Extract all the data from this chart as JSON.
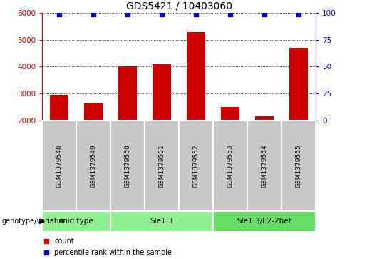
{
  "title": "GDS5421 / 10403060",
  "samples": [
    "GSM1379548",
    "GSM1379549",
    "GSM1379550",
    "GSM1379551",
    "GSM1379552",
    "GSM1379553",
    "GSM1379554",
    "GSM1379555"
  ],
  "counts": [
    2950,
    2650,
    4000,
    4100,
    5300,
    2500,
    2150,
    4700
  ],
  "percentiles": [
    99,
    99,
    99,
    99,
    99,
    99,
    99,
    99
  ],
  "ylim_left": [
    2000,
    6000
  ],
  "ylim_right": [
    0,
    100
  ],
  "yticks_left": [
    2000,
    3000,
    4000,
    5000,
    6000
  ],
  "yticks_right": [
    0,
    25,
    50,
    75,
    100
  ],
  "bar_color": "#cc0000",
  "scatter_color": "#0000cc",
  "bar_width": 0.55,
  "group_ranges": [
    [
      0,
      1,
      "wild type"
    ],
    [
      2,
      4,
      "Sle1.3"
    ],
    [
      5,
      7,
      "Sle1.3/E2-2het"
    ]
  ],
  "group_colors": [
    "#90ee90",
    "#90ee90",
    "#66dd66"
  ],
  "cell_color": "#c8c8c8",
  "cell_edge_color": "#ffffff",
  "legend_count_color": "#cc0000",
  "legend_pct_color": "#0000cc",
  "title_fontsize": 10,
  "tick_fontsize": 7.5,
  "sample_fontsize": 6.5,
  "genotype_fontsize": 7.5,
  "legend_fontsize": 7
}
